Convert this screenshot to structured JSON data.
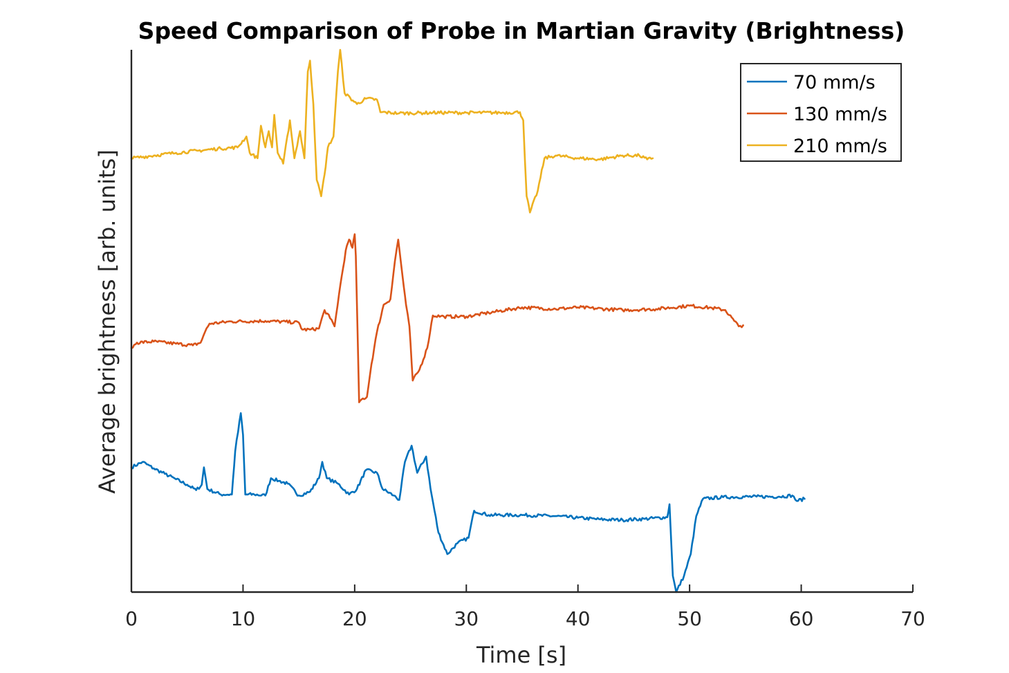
{
  "chart_data": {
    "type": "line",
    "title": "Speed Comparison of Probe in Martian Gravity (Brightness)",
    "xlabel": "Time [s]",
    "ylabel": "Average brightness [arb. units]",
    "xlim": [
      0,
      70
    ],
    "ylim": [
      0,
      10
    ],
    "x_ticks": [
      0,
      10,
      20,
      30,
      40,
      50,
      60,
      70
    ],
    "x_tick_labels": [
      "0",
      "10",
      "20",
      "30",
      "40",
      "50",
      "60",
      "70"
    ],
    "grid": false,
    "legend_position": "top-right",
    "series": [
      {
        "name": "70 mm/s",
        "color": "#0072BD",
        "points": [
          [
            0,
            2.3
          ],
          [
            1,
            2.4
          ],
          [
            2,
            2.28
          ],
          [
            3,
            2.18
          ],
          [
            4,
            2.08
          ],
          [
            5,
            1.98
          ],
          [
            5.8,
            1.88
          ],
          [
            6.3,
            1.98
          ],
          [
            6.5,
            2.3
          ],
          [
            6.8,
            1.9
          ],
          [
            8,
            1.8
          ],
          [
            9,
            1.8
          ],
          [
            9.3,
            2.6
          ],
          [
            9.8,
            3.3
          ],
          [
            10.0,
            2.9
          ],
          [
            10.2,
            1.8
          ],
          [
            11,
            1.8
          ],
          [
            12,
            1.78
          ],
          [
            12.5,
            2.1
          ],
          [
            13.2,
            2.05
          ],
          [
            14,
            2.0
          ],
          [
            15,
            1.78
          ],
          [
            16,
            1.85
          ],
          [
            16.8,
            2.1
          ],
          [
            17.1,
            2.4
          ],
          [
            17.5,
            2.1
          ],
          [
            18.5,
            2.0
          ],
          [
            19.5,
            1.8
          ],
          [
            20.2,
            1.9
          ],
          [
            21,
            2.25
          ],
          [
            22,
            2.2
          ],
          [
            22.5,
            1.9
          ],
          [
            23.5,
            1.78
          ],
          [
            24,
            1.7
          ],
          [
            24.5,
            2.4
          ],
          [
            25.1,
            2.7
          ],
          [
            25.6,
            2.2
          ],
          [
            26.4,
            2.5
          ],
          [
            26.8,
            1.9
          ],
          [
            27.5,
            1.1
          ],
          [
            28.3,
            0.7
          ],
          [
            29.2,
            0.9
          ],
          [
            30.2,
            1.0
          ],
          [
            30.7,
            1.5
          ],
          [
            32,
            1.42
          ],
          [
            35,
            1.42
          ],
          [
            38,
            1.4
          ],
          [
            40,
            1.37
          ],
          [
            42,
            1.34
          ],
          [
            44,
            1.33
          ],
          [
            46,
            1.35
          ],
          [
            48,
            1.38
          ],
          [
            48.2,
            1.62
          ],
          [
            48.5,
            0.3
          ],
          [
            48.8,
            0.0
          ],
          [
            49.5,
            0.3
          ],
          [
            50.1,
            0.7
          ],
          [
            50.6,
            1.4
          ],
          [
            51.2,
            1.72
          ],
          [
            53,
            1.75
          ],
          [
            56,
            1.76
          ],
          [
            58,
            1.76
          ],
          [
            59.2,
            1.78
          ],
          [
            59.6,
            1.68
          ],
          [
            60.3,
            1.72
          ]
        ]
      },
      {
        "name": "130 mm/s",
        "color": "#D95319",
        "points": [
          [
            0,
            4.5
          ],
          [
            0.5,
            4.6
          ],
          [
            2,
            4.62
          ],
          [
            4,
            4.58
          ],
          [
            5.5,
            4.55
          ],
          [
            6.2,
            4.6
          ],
          [
            6.6,
            4.8
          ],
          [
            7,
            4.95
          ],
          [
            9,
            4.99
          ],
          [
            12,
            5.0
          ],
          [
            15,
            4.97
          ],
          [
            15.3,
            4.84
          ],
          [
            16,
            4.84
          ],
          [
            16.8,
            4.86
          ],
          [
            17.3,
            5.2
          ],
          [
            17.8,
            5.05
          ],
          [
            18.2,
            4.9
          ],
          [
            18.6,
            5.5
          ],
          [
            19.2,
            6.3
          ],
          [
            19.5,
            6.5
          ],
          [
            19.8,
            6.35
          ],
          [
            20.0,
            6.6
          ],
          [
            20.1,
            6.2
          ],
          [
            20.4,
            3.5
          ],
          [
            20.6,
            3.55
          ],
          [
            21.1,
            3.6
          ],
          [
            21.5,
            4.2
          ],
          [
            22,
            4.8
          ],
          [
            22.6,
            5.3
          ],
          [
            23.2,
            5.4
          ],
          [
            23.6,
            6.1
          ],
          [
            23.9,
            6.5
          ],
          [
            24.3,
            5.8
          ],
          [
            24.6,
            5.3
          ],
          [
            24.9,
            4.9
          ],
          [
            25.2,
            3.9
          ],
          [
            25.8,
            4.1
          ],
          [
            26.5,
            4.5
          ],
          [
            27,
            5.1
          ],
          [
            28,
            5.08
          ],
          [
            30,
            5.08
          ],
          [
            32,
            5.15
          ],
          [
            35,
            5.25
          ],
          [
            38,
            5.22
          ],
          [
            40,
            5.25
          ],
          [
            44,
            5.2
          ],
          [
            47,
            5.22
          ],
          [
            50,
            5.28
          ],
          [
            52,
            5.24
          ],
          [
            53.2,
            5.2
          ],
          [
            54,
            5.0
          ],
          [
            54.4,
            4.9
          ],
          [
            54.8,
            4.92
          ]
        ]
      },
      {
        "name": "210 mm/s",
        "color": "#EDB120",
        "points": [
          [
            0,
            8.0
          ],
          [
            2,
            8.05
          ],
          [
            4,
            8.1
          ],
          [
            6,
            8.14
          ],
          [
            8,
            8.18
          ],
          [
            9.5,
            8.2
          ],
          [
            10.3,
            8.4
          ],
          [
            10.6,
            8.1
          ],
          [
            11.3,
            8.0
          ],
          [
            11.6,
            8.6
          ],
          [
            12,
            8.2
          ],
          [
            12.3,
            8.5
          ],
          [
            12.6,
            8.2
          ],
          [
            12.8,
            8.8
          ],
          [
            13.1,
            8.1
          ],
          [
            13.6,
            7.9
          ],
          [
            14.2,
            8.7
          ],
          [
            14.6,
            8.0
          ],
          [
            15.1,
            8.5
          ],
          [
            15.5,
            8.0
          ],
          [
            15.8,
            9.6
          ],
          [
            16.0,
            9.8
          ],
          [
            16.3,
            9.0
          ],
          [
            16.6,
            7.6
          ],
          [
            17.0,
            7.3
          ],
          [
            17.3,
            7.7
          ],
          [
            17.6,
            8.2
          ],
          [
            18.1,
            8.4
          ],
          [
            18.5,
            9.6
          ],
          [
            18.7,
            10.0
          ],
          [
            19.1,
            9.2
          ],
          [
            20.2,
            9.0
          ],
          [
            21,
            9.1
          ],
          [
            22,
            9.08
          ],
          [
            22.3,
            8.85
          ],
          [
            24,
            8.83
          ],
          [
            27,
            8.84
          ],
          [
            30,
            8.84
          ],
          [
            33,
            8.84
          ],
          [
            34.8,
            8.85
          ],
          [
            35.1,
            8.7
          ],
          [
            35.4,
            7.3
          ],
          [
            35.7,
            7.0
          ],
          [
            36.4,
            7.4
          ],
          [
            37,
            8.0
          ],
          [
            38,
            8.05
          ],
          [
            40,
            8.0
          ],
          [
            42,
            7.98
          ],
          [
            44,
            8.05
          ],
          [
            45.5,
            8.05
          ],
          [
            46.2,
            7.98
          ],
          [
            46.7,
            8.0
          ]
        ]
      }
    ]
  }
}
